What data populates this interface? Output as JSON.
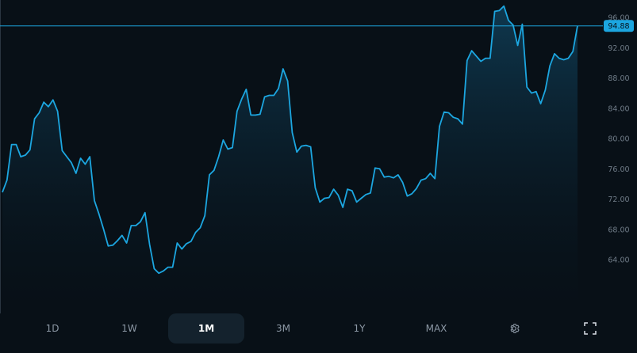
{
  "colors": {
    "background": "#081017",
    "line": "#1ca6e0",
    "price_badge": "#1ca6e0",
    "axis_text": "#6f7b87",
    "active_tab_bg": "#14222d"
  },
  "current_price": "94.88",
  "range_tabs": [
    {
      "label": "1D",
      "active": false
    },
    {
      "label": "1W",
      "active": false
    },
    {
      "label": "1M",
      "active": true
    },
    {
      "label": "3M",
      "active": false
    },
    {
      "label": "1Y",
      "active": false
    },
    {
      "label": "MAX",
      "active": false
    }
  ],
  "icons": {
    "settings": "gear-icon",
    "fullscreen": "expand-icon"
  },
  "chart_data": {
    "type": "area",
    "ylim": [
      58,
      97.5
    ],
    "y_ticks": [
      "96.00",
      "92.00",
      "88.00",
      "84.00",
      "80.00",
      "76.00",
      "72.00",
      "68.00",
      "64.00"
    ],
    "y_tick_values": [
      96,
      92,
      88,
      84,
      80,
      76,
      72,
      68,
      64
    ],
    "current_value": 94.88,
    "grid": false,
    "values": [
      72.9,
      74.5,
      79.2,
      79.2,
      77.6,
      77.8,
      78.5,
      82.6,
      83.4,
      84.8,
      84.2,
      85.1,
      83.6,
      78.4,
      77.6,
      76.8,
      75.4,
      77.4,
      76.6,
      77.6,
      71.8,
      70.0,
      68.0,
      65.8,
      65.9,
      66.5,
      67.2,
      66.2,
      68.5,
      68.5,
      69.0,
      70.2,
      66.0,
      62.8,
      62.2,
      62.5,
      63.0,
      63.0,
      66.2,
      65.4,
      66.1,
      66.4,
      67.6,
      68.2,
      69.8,
      75.2,
      75.8,
      77.6,
      79.8,
      78.6,
      78.8,
      83.6,
      85.2,
      86.5,
      83.1,
      83.1,
      83.2,
      85.5,
      85.7,
      85.7,
      86.6,
      89.2,
      87.6,
      80.8,
      78.2,
      79.0,
      79.1,
      78.9,
      73.5,
      71.6,
      72.1,
      72.2,
      73.3,
      72.5,
      70.9,
      73.3,
      73.1,
      71.6,
      72.1,
      72.6,
      72.8,
      76.1,
      76.0,
      74.9,
      75.0,
      74.8,
      75.2,
      74.2,
      72.4,
      72.7,
      73.4,
      74.5,
      74.7,
      75.4,
      74.7,
      81.6,
      83.5,
      83.4,
      82.8,
      82.6,
      81.9,
      90.3,
      91.6,
      90.9,
      90.2,
      90.6,
      90.6,
      96.8,
      96.9,
      97.5,
      95.6,
      95.0,
      92.3,
      95.1,
      86.8,
      86.0,
      86.2,
      84.6,
      86.4,
      89.6,
      91.2,
      90.6,
      90.4,
      90.6,
      91.5,
      94.88
    ]
  }
}
